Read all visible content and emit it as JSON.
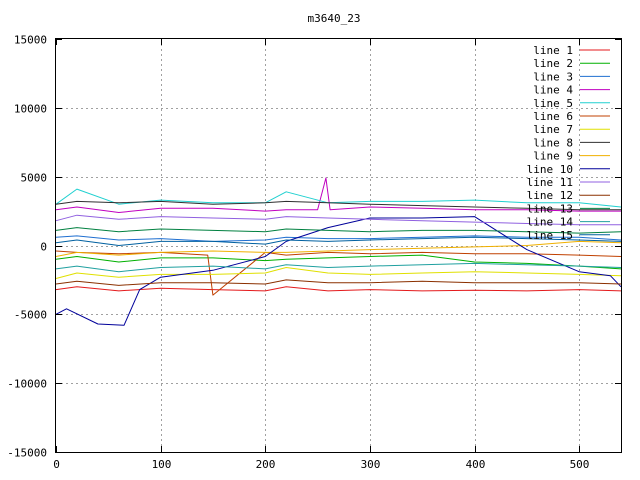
{
  "chart_data": {
    "type": "line",
    "title": "m3640_23",
    "xlabel": "",
    "ylabel": "",
    "xlim": [
      0,
      540
    ],
    "ylim": [
      -15000,
      15000
    ],
    "x_ticks": [
      0,
      100,
      200,
      300,
      400,
      500
    ],
    "y_ticks": [
      -15000,
      -10000,
      -5000,
      0,
      5000,
      10000,
      15000
    ],
    "grid": true,
    "legend_position": "top-right",
    "series": [
      {
        "name": "line 1",
        "color": "#e41a1c",
        "x": [
          0,
          20,
          60,
          100,
          150,
          200,
          220,
          260,
          300,
          350,
          400,
          450,
          500,
          540
        ],
        "values": [
          -3200,
          -3000,
          -3300,
          -3100,
          -3200,
          -3300,
          -3000,
          -3300,
          -3200,
          -3300,
          -3250,
          -3300,
          -3200,
          -3300
        ]
      },
      {
        "name": "line 2",
        "color": "#00b000",
        "x": [
          0,
          20,
          60,
          100,
          150,
          200,
          220,
          260,
          300,
          350,
          400,
          450,
          500,
          540
        ],
        "values": [
          -1000,
          -800,
          -1200,
          -900,
          -900,
          -1100,
          -1000,
          -900,
          -800,
          -700,
          -1200,
          -1300,
          -1500,
          -1700
        ]
      },
      {
        "name": "line 3",
        "color": "#1f6fd0",
        "x": [
          0,
          20,
          60,
          100,
          150,
          200,
          220,
          260,
          300,
          350,
          400,
          450,
          500,
          540
        ],
        "values": [
          600,
          700,
          400,
          500,
          300,
          400,
          600,
          500,
          500,
          600,
          700,
          600,
          600,
          400
        ]
      },
      {
        "name": "line 4",
        "color": "#c000c0",
        "x": [
          0,
          20,
          60,
          100,
          150,
          200,
          220,
          250,
          258,
          262,
          300,
          350,
          400,
          450,
          500,
          540
        ],
        "values": [
          2600,
          2800,
          2400,
          2700,
          2700,
          2500,
          2600,
          2600,
          4900,
          2600,
          2800,
          2700,
          2600,
          2600,
          2500,
          2500
        ]
      },
      {
        "name": "line 5",
        "color": "#20d0d0",
        "x": [
          0,
          20,
          60,
          100,
          150,
          200,
          220,
          260,
          300,
          350,
          400,
          450,
          500,
          540
        ],
        "values": [
          3000,
          4100,
          3000,
          3300,
          3100,
          3100,
          3900,
          3100,
          3200,
          3200,
          3300,
          3100,
          3100,
          2800
        ]
      },
      {
        "name": "line 6",
        "color": "#c04000",
        "x": [
          0,
          20,
          60,
          100,
          145,
          150,
          200,
          220,
          260,
          300,
          350,
          400,
          450,
          500,
          540
        ],
        "values": [
          -400,
          -500,
          -600,
          -500,
          -700,
          -3600,
          -500,
          -700,
          -500,
          -600,
          -500,
          -600,
          -600,
          -700,
          -800
        ]
      },
      {
        "name": "line 7",
        "color": "#e0e000",
        "x": [
          0,
          20,
          60,
          100,
          150,
          200,
          220,
          260,
          300,
          350,
          400,
          450,
          500,
          540
        ],
        "values": [
          -2400,
          -2000,
          -2300,
          -2100,
          -2100,
          -2000,
          -1600,
          -2000,
          -2100,
          -2000,
          -1900,
          -2000,
          -2100,
          -2200
        ]
      },
      {
        "name": "line 8",
        "color": "#303030",
        "x": [
          0,
          20,
          60,
          100,
          150,
          200,
          220,
          260,
          300,
          350,
          400,
          450,
          500,
          540
        ],
        "values": [
          3000,
          3200,
          3100,
          3200,
          3000,
          3100,
          3200,
          3100,
          3000,
          2900,
          2800,
          2700,
          2600,
          2600
        ]
      },
      {
        "name": "line 9",
        "color": "#f0b000",
        "x": [
          0,
          20,
          60,
          100,
          150,
          200,
          220,
          260,
          300,
          350,
          400,
          450,
          500,
          540
        ],
        "values": [
          -800,
          -500,
          -700,
          -500,
          -400,
          -500,
          -500,
          -400,
          -300,
          -200,
          -100,
          0,
          300,
          200
        ]
      },
      {
        "name": "line 10",
        "color": "#00009a",
        "x": [
          0,
          10,
          40,
          65,
          80,
          100,
          150,
          200,
          220,
          260,
          300,
          350,
          400,
          450,
          500,
          530,
          540
        ],
        "values": [
          -5000,
          -4600,
          -5700,
          -5800,
          -3200,
          -2300,
          -1800,
          -800,
          300,
          1300,
          2000,
          2000,
          2100,
          -300,
          -1900,
          -2200,
          -3000
        ]
      },
      {
        "name": "line 11",
        "color": "#9060e0",
        "x": [
          0,
          20,
          60,
          100,
          150,
          200,
          220,
          260,
          300,
          350,
          400,
          450,
          500,
          540
        ],
        "values": [
          1800,
          2200,
          1900,
          2100,
          2000,
          1900,
          2100,
          2000,
          1900,
          1800,
          1700,
          1600,
          1500,
          1500
        ]
      },
      {
        "name": "line 12",
        "color": "#8b3000",
        "x": [
          0,
          20,
          60,
          100,
          150,
          200,
          220,
          260,
          300,
          350,
          400,
          450,
          500,
          540
        ],
        "values": [
          -2800,
          -2600,
          -2900,
          -2700,
          -2700,
          -2800,
          -2500,
          -2700,
          -2700,
          -2600,
          -2700,
          -2700,
          -2700,
          -2800
        ]
      },
      {
        "name": "line 13",
        "color": "#008040",
        "x": [
          0,
          20,
          60,
          100,
          150,
          200,
          220,
          260,
          300,
          350,
          400,
          450,
          500,
          540
        ],
        "values": [
          1100,
          1300,
          1000,
          1200,
          1100,
          1000,
          1200,
          1100,
          1000,
          1100,
          1100,
          1000,
          900,
          1000
        ]
      },
      {
        "name": "line 14",
        "color": "#20a0a0",
        "x": [
          0,
          20,
          60,
          100,
          150,
          200,
          220,
          260,
          300,
          350,
          400,
          450,
          500,
          540
        ],
        "values": [
          -1700,
          -1500,
          -1900,
          -1600,
          -1500,
          -1700,
          -1400,
          -1600,
          -1500,
          -1400,
          -1300,
          -1400,
          -1500,
          -1600
        ]
      },
      {
        "name": "line 15",
        "color": "#0060a0",
        "x": [
          0,
          20,
          60,
          100,
          150,
          200,
          220,
          260,
          300,
          350,
          400,
          450,
          500,
          540
        ],
        "values": [
          200,
          400,
          0,
          300,
          300,
          100,
          400,
          300,
          400,
          500,
          600,
          500,
          400,
          300
        ]
      }
    ]
  }
}
